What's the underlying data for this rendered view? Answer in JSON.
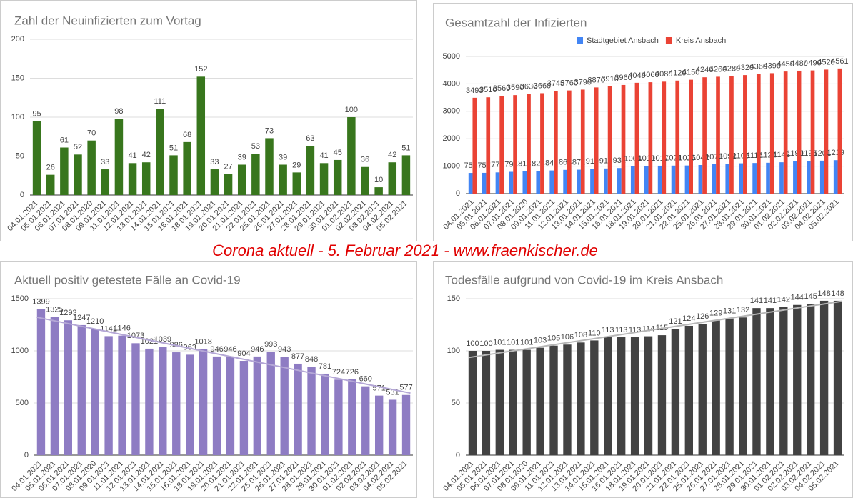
{
  "banner": "Corona aktuell - 5. Februar 2021 - www.fraenkischer.de",
  "chart_data": [
    {
      "type": "bar",
      "title": "Zahl der Neuinfizierten zum Vortag",
      "categories": [
        "04.01.2021",
        "05.01.2021",
        "06.01.2021",
        "07.01.2021",
        "08.01.2020",
        "09.01.2021",
        "11.01.2021",
        "12.01.2021",
        "13.01.2021",
        "14.01.2021",
        "15.01.2021",
        "16.01.2021",
        "18.01.2021",
        "19.01.2021",
        "20.01.2021",
        "21.01.2021",
        "22.01.2021",
        "25.01.2021",
        "26.01.2021",
        "27.01.2021",
        "28.01.2021",
        "29.01.2021",
        "30.01.2021",
        "01.02.2021",
        "02.02.2021",
        "03.02.2021",
        "04.02.2021",
        "05.02.2021"
      ],
      "values": [
        95,
        26,
        61,
        52,
        70,
        33,
        98,
        41,
        42,
        111,
        51,
        68,
        152,
        33,
        27,
        39,
        53,
        73,
        39,
        29,
        63,
        41,
        45,
        100,
        36,
        10,
        42,
        51
      ],
      "color": "#38761d",
      "ylim": [
        0,
        200
      ],
      "yticks": [
        0,
        50,
        100,
        150,
        200
      ],
      "grid": true,
      "data_labels": true
    },
    {
      "type": "bar",
      "title": "Gesamtzahl der Infizierten",
      "categories": [
        "04.01.2021",
        "05.01.2021",
        "06.01.2021",
        "07.01.2021",
        "08.01.2020",
        "09.01.2021",
        "11.01.2021",
        "12.01.2021",
        "13.01.2021",
        "14.01.2021",
        "15.01.2021",
        "16.01.2021",
        "18.01.2021",
        "19.01.2021",
        "20.01.2021",
        "21.01.2021",
        "22.01.2021",
        "25.01.2021",
        "26.01.2021",
        "27.01.2021",
        "28.01.2021",
        "29.01.2021",
        "30.01.2021",
        "01.02.2021",
        "02.02.2021",
        "03.02.2021",
        "04.02.2021",
        "05.02.2021"
      ],
      "series": [
        {
          "name": "Stadtgebiet Ansbach",
          "color": "#4285f4",
          "values": [
            754,
            757,
            773,
            794,
            818,
            824,
            844,
            864,
            871,
            910,
            916,
            932,
            1004,
            1010,
            1017,
            1021,
            1025,
            1042,
            1070,
            1092,
            1105,
            1116,
            1124,
            1142,
            1190,
            1195,
            1201,
            1219
          ]
        },
        {
          "name": "Kreis Ansbach",
          "color": "#ea4335",
          "values": [
            3493,
            3510,
            3560,
            3590,
            3630,
            3660,
            3745,
            3760,
            3790,
            3870,
            3910,
            3960,
            4040,
            4060,
            4080,
            4120,
            4150,
            4240,
            4260,
            4280,
            4320,
            4360,
            4390,
            4450,
            4480,
            4490,
            4520,
            4561
          ]
        }
      ],
      "ylim": [
        0,
        5000
      ],
      "yticks": [
        0,
        1000,
        2000,
        3000,
        4000,
        5000
      ],
      "grid": true,
      "legend": "top",
      "data_labels": true
    },
    {
      "type": "bar",
      "title": "Aktuell positiv getestete Fälle an Covid-19",
      "categories": [
        "04.01.2021",
        "05.01.2021",
        "06.01.2021",
        "07.01.2021",
        "08.01.2020",
        "09.01.2021",
        "11.01.2021",
        "12.01.2021",
        "13.01.2021",
        "14.01.2021",
        "15.01.2021",
        "16.01.2021",
        "18.01.2021",
        "19.01.2021",
        "20.01.2021",
        "21.01.2021",
        "22.01.2021",
        "25.01.2021",
        "26.01.2021",
        "27.01.2021",
        "28.01.2021",
        "29.01.2021",
        "30.01.2021",
        "01.02.2021",
        "02.02.2021",
        "03.02.2021",
        "04.02.2021",
        "05.02.2021"
      ],
      "values": [
        1399,
        1325,
        1293,
        1247,
        1210,
        1141,
        1146,
        1073,
        1021,
        1039,
        986,
        963,
        1018,
        946,
        946,
        904,
        946,
        993,
        943,
        877,
        848,
        781,
        724,
        726,
        660,
        571,
        531,
        577
      ],
      "color": "#8e7cc3",
      "trendline_color": "#b4a7d6",
      "ylim": [
        0,
        1500
      ],
      "yticks": [
        0,
        500,
        1000,
        1500
      ],
      "grid": true,
      "trendline": true,
      "data_labels": true
    },
    {
      "type": "bar",
      "title": "Todesfälle aufgrund von Covid-19 im Kreis Ansbach",
      "categories": [
        "04.01.2021",
        "05.01.2021",
        "06.01.2021",
        "07.01.2021",
        "08.01.2020",
        "09.01.2021",
        "11.01.2021",
        "12.01.2021",
        "13.01.2021",
        "14.01.2021",
        "15.01.2021",
        "16.01.2021",
        "18.01.2021",
        "19.01.2021",
        "20.01.2021",
        "21.01.2021",
        "22.01.2021",
        "25.01.2021",
        "26.01.2021",
        "27.01.2021",
        "28.01.2021",
        "29.01.2021",
        "30.01.2021",
        "01.02.2021",
        "02.02.2021",
        "03.02.2021",
        "04.02.2021",
        "05.02.2021"
      ],
      "values": [
        100,
        100,
        101,
        101,
        101,
        103,
        105,
        106,
        108,
        110,
        113,
        113,
        113,
        114,
        115,
        121,
        124,
        126,
        129,
        131,
        132,
        141,
        141,
        142,
        144,
        145,
        148,
        148
      ],
      "color": "#424242",
      "trendline_color": "#b7b7b7",
      "ylim": [
        0,
        150
      ],
      "yticks": [
        0,
        50,
        100,
        150
      ],
      "grid": true,
      "trendline": true,
      "data_labels": true
    }
  ]
}
